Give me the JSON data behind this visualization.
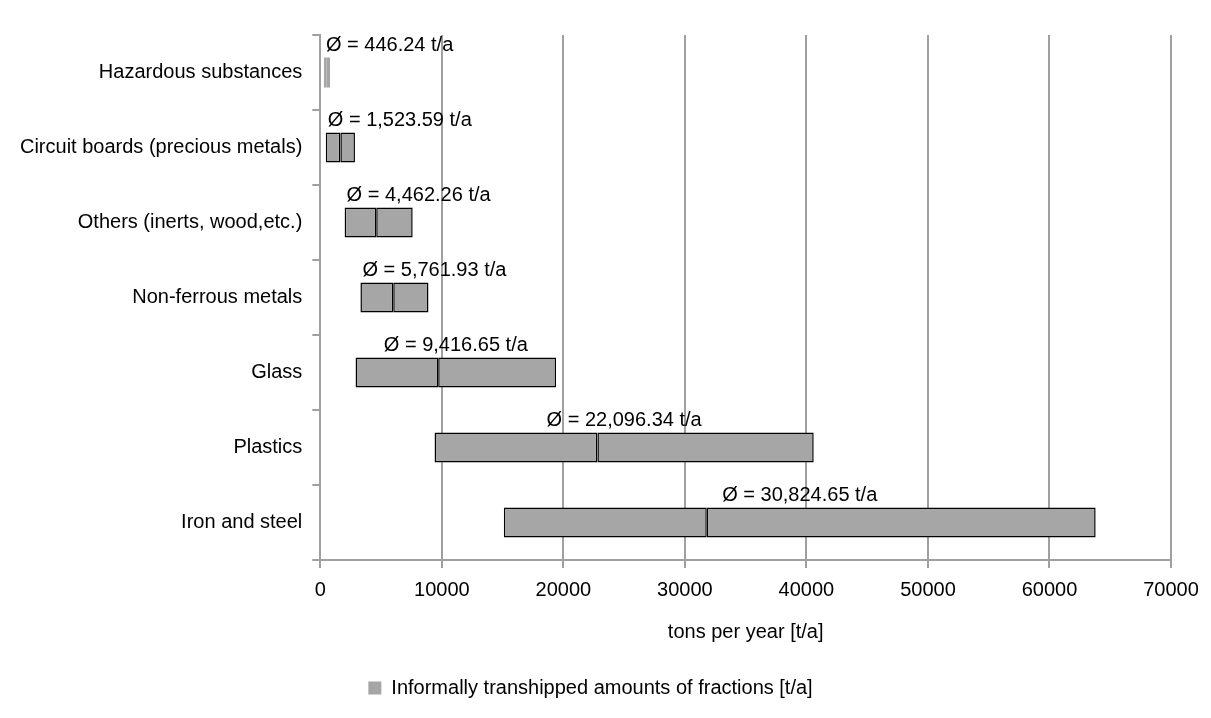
{
  "chart_data": {
    "type": "bar",
    "orientation": "horizontal",
    "categories": [
      "Hazardous substances",
      "Circuit boards (precious metals)",
      "Others (inerts, wood,etc.)",
      "Non-ferrous metals",
      "Glass",
      "Plastics",
      "Iron and steel"
    ],
    "series": [
      {
        "name": "Informally transhipped amounts of fractions [t/a]",
        "color": "#a6a6a6",
        "base": [
          300,
          450,
          2000,
          3300,
          2900,
          9400,
          15100
        ],
        "values": [
          200,
          1200,
          2600,
          2700,
          6800,
          13400,
          16700
        ]
      },
      {
        "color": "#a6a6a6",
        "base": [
          500,
          1650,
          4600,
          6000,
          9700,
          22800,
          31800
        ],
        "values": [
          300,
          1200,
          3000,
          2900,
          9700,
          17800,
          32000
        ]
      }
    ],
    "xlabel": "tons per year [t/a]",
    "xlim": [
      0,
      70000
    ],
    "xticks": [
      0,
      10000,
      20000,
      30000,
      40000,
      50000,
      60000,
      70000
    ],
    "grid": "x",
    "legend": "bottom",
    "annotations": [
      "Ø = 446.24 t/a",
      "Ø = 1,523.59 t/a",
      "Ø = 4,462.26 t/a",
      "Ø = 5,761.93 t/a",
      "Ø = 9,416.65 t/a",
      "Ø = 22,096.34 t/a",
      "Ø = 30,824.65 t/a"
    ]
  }
}
